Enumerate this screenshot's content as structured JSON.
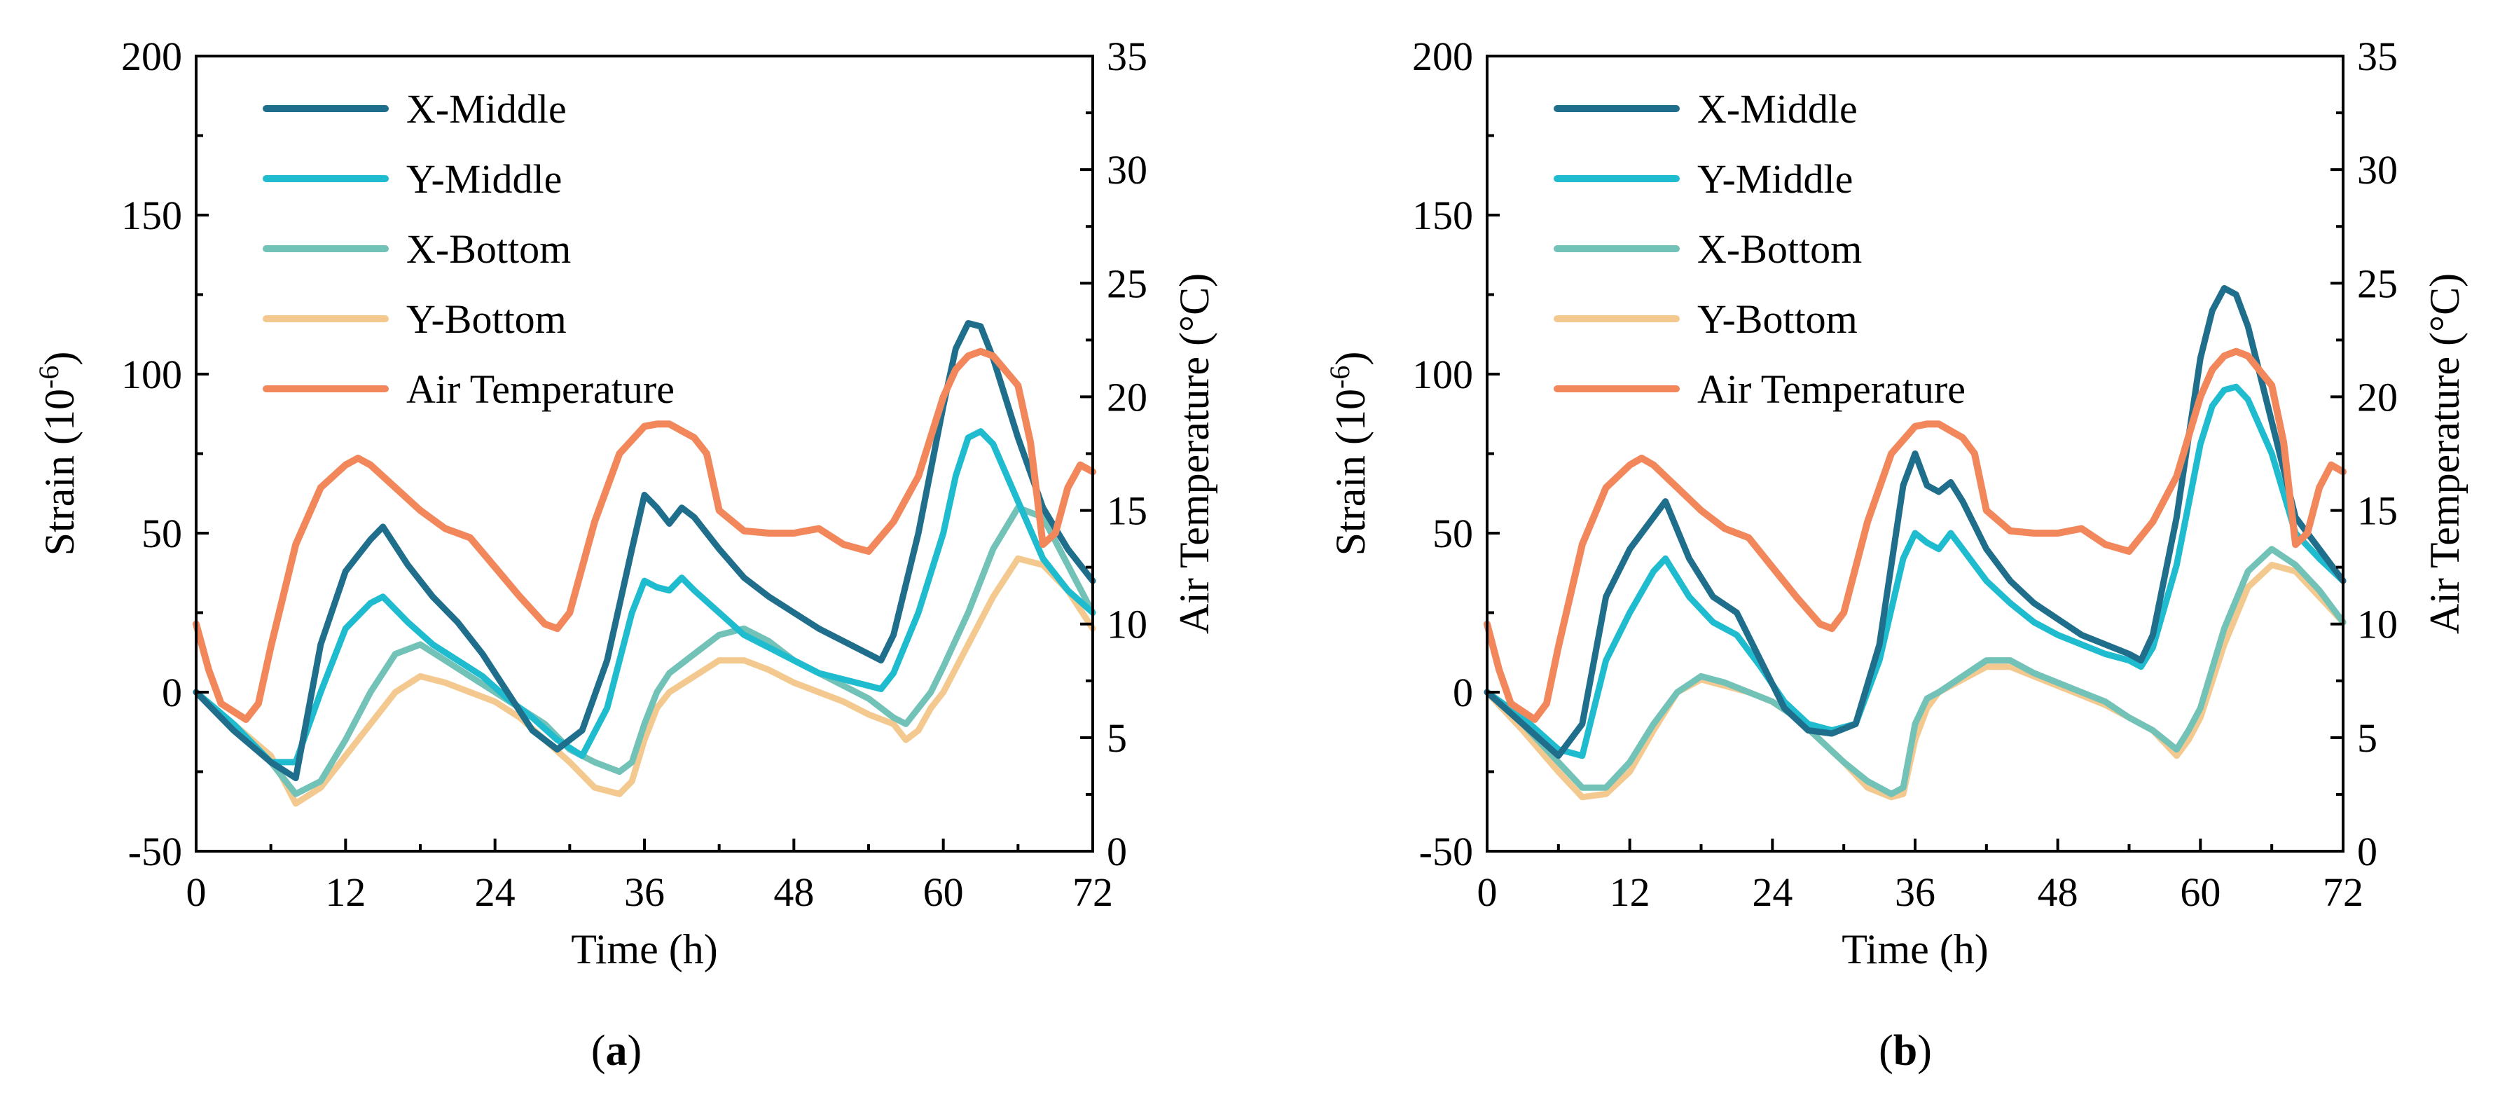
{
  "chart_data": [
    {
      "type": "line",
      "panel": "a",
      "caption_letter": "a",
      "caption_open": "(",
      "caption_close": ")",
      "xlabel": "Time (h)",
      "ylabel_left_main": "Strain (10",
      "ylabel_left_sup": "-6",
      "ylabel_left_close": ")",
      "ylabel_right": "Air Temperature (°C)",
      "xlim": [
        0,
        72
      ],
      "ylim_left": [
        -50,
        200
      ],
      "ylim_right": [
        0,
        35
      ],
      "xticks": [
        0,
        12,
        24,
        36,
        48,
        60,
        72
      ],
      "yticks_left": [
        -50,
        0,
        50,
        100,
        150,
        200
      ],
      "yticks_right": [
        0,
        5,
        10,
        15,
        20,
        25,
        30,
        35
      ],
      "legend_position": "top-left",
      "grid": false,
      "series": [
        {
          "name": "X-Middle",
          "axis": "left",
          "color": "#1F6E8C",
          "x": [
            0,
            3,
            6,
            8,
            10,
            12,
            14,
            15,
            17,
            19,
            21,
            23,
            25,
            27,
            29,
            31,
            33,
            35,
            36,
            37,
            38,
            39,
            40,
            42,
            44,
            46,
            48,
            50,
            52,
            54,
            55,
            56,
            58,
            60,
            61,
            62,
            63,
            64,
            66,
            68,
            70,
            72
          ],
          "values": [
            0,
            -12,
            -22,
            -27,
            15,
            38,
            48,
            52,
            40,
            30,
            22,
            12,
            0,
            -12,
            -18,
            -12,
            10,
            45,
            62,
            58,
            53,
            58,
            55,
            45,
            36,
            30,
            25,
            20,
            16,
            12,
            10,
            18,
            50,
            90,
            108,
            116,
            115,
            105,
            80,
            58,
            45,
            35
          ]
        },
        {
          "name": "Y-Middle",
          "axis": "left",
          "color": "#1FBCCF",
          "x": [
            0,
            3,
            6,
            8,
            10,
            12,
            14,
            15,
            17,
            19,
            21,
            23,
            25,
            27,
            29,
            31,
            33,
            35,
            36,
            37,
            38,
            39,
            40,
            42,
            44,
            46,
            48,
            50,
            52,
            54,
            55,
            56,
            58,
            60,
            61,
            62,
            63,
            64,
            66,
            68,
            70,
            72
          ],
          "values": [
            0,
            -10,
            -22,
            -22,
            0,
            20,
            28,
            30,
            22,
            15,
            10,
            5,
            -2,
            -8,
            -15,
            -20,
            -5,
            25,
            35,
            33,
            32,
            36,
            32,
            25,
            18,
            14,
            10,
            6,
            4,
            2,
            1,
            6,
            25,
            50,
            68,
            80,
            82,
            78,
            60,
            42,
            32,
            25
          ]
        },
        {
          "name": "X-Bottom",
          "axis": "left",
          "color": "#72C2B8",
          "x": [
            0,
            3,
            6,
            8,
            10,
            12,
            14,
            16,
            18,
            20,
            22,
            24,
            26,
            28,
            30,
            32,
            34,
            35,
            36,
            37,
            38,
            40,
            42,
            44,
            46,
            48,
            50,
            52,
            54,
            56,
            57,
            58,
            59,
            60,
            62,
            64,
            66,
            68,
            70,
            72
          ],
          "values": [
            0,
            -10,
            -22,
            -32,
            -28,
            -15,
            0,
            12,
            15,
            10,
            5,
            0,
            -5,
            -10,
            -18,
            -22,
            -25,
            -22,
            -10,
            0,
            6,
            12,
            18,
            20,
            16,
            10,
            6,
            2,
            -2,
            -8,
            -10,
            -5,
            0,
            8,
            25,
            45,
            58,
            55,
            40,
            25
          ]
        },
        {
          "name": "Y-Bottom",
          "axis": "left",
          "color": "#F4C98F",
          "x": [
            0,
            3,
            6,
            8,
            10,
            12,
            14,
            16,
            18,
            20,
            22,
            24,
            26,
            28,
            30,
            32,
            34,
            35,
            36,
            37,
            38,
            40,
            42,
            44,
            46,
            48,
            50,
            52,
            54,
            56,
            57,
            58,
            59,
            60,
            62,
            64,
            66,
            68,
            70,
            72
          ],
          "values": [
            0,
            -10,
            -20,
            -35,
            -30,
            -20,
            -10,
            0,
            5,
            3,
            0,
            -3,
            -8,
            -15,
            -22,
            -30,
            -32,
            -28,
            -15,
            -5,
            0,
            5,
            10,
            10,
            7,
            3,
            0,
            -3,
            -7,
            -10,
            -15,
            -12,
            -5,
            0,
            15,
            30,
            42,
            40,
            32,
            20
          ]
        },
        {
          "name": "Air Temperature",
          "axis": "right",
          "color": "#F2875C",
          "x": [
            0,
            1,
            2,
            4,
            5,
            6,
            8,
            10,
            12,
            13,
            14,
            16,
            18,
            20,
            22,
            24,
            26,
            28,
            29,
            30,
            32,
            34,
            36,
            37,
            38,
            40,
            41,
            42,
            44,
            46,
            48,
            50,
            52,
            54,
            56,
            58,
            60,
            61,
            62,
            63,
            64,
            66,
            67,
            68,
            69,
            70,
            71,
            72
          ],
          "values": [
            10,
            8,
            6.5,
            5.8,
            6.5,
            9,
            13.5,
            16,
            17,
            17.3,
            17,
            16,
            15,
            14.2,
            13.8,
            12.5,
            11.2,
            10,
            9.8,
            10.5,
            14.5,
            17.5,
            18.7,
            18.8,
            18.8,
            18.2,
            17.5,
            15,
            14.1,
            14,
            14,
            14.2,
            13.5,
            13.2,
            14.5,
            16.5,
            20,
            21.2,
            21.8,
            22,
            21.8,
            20.5,
            18,
            13.5,
            14,
            16,
            17,
            16.7
          ]
        }
      ]
    },
    {
      "type": "line",
      "panel": "b",
      "caption_letter": "b",
      "caption_open": "(",
      "caption_close": ")",
      "xlabel": "Time (h)",
      "ylabel_left_main": "Strain (10",
      "ylabel_left_sup": "-6",
      "ylabel_left_close": ")",
      "ylabel_right": "Air Temperature (°C)",
      "xlim": [
        0,
        72
      ],
      "ylim_left": [
        -50,
        200
      ],
      "ylim_right": [
        0,
        35
      ],
      "xticks": [
        0,
        12,
        24,
        36,
        48,
        60,
        72
      ],
      "yticks_left": [
        -50,
        0,
        50,
        100,
        150,
        200
      ],
      "yticks_right": [
        0,
        5,
        10,
        15,
        20,
        25,
        30,
        35
      ],
      "legend_position": "top-left",
      "grid": false,
      "series": [
        {
          "name": "X-Middle",
          "axis": "left",
          "color": "#1F6E8C",
          "x": [
            0,
            3,
            6,
            8,
            10,
            12,
            14,
            15,
            17,
            19,
            21,
            23,
            25,
            27,
            29,
            31,
            33,
            35,
            36,
            37,
            38,
            39,
            40,
            42,
            44,
            46,
            48,
            50,
            52,
            54,
            55,
            56,
            58,
            60,
            61,
            62,
            63,
            64,
            66,
            68,
            70,
            72
          ],
          "values": [
            0,
            -10,
            -20,
            -10,
            30,
            45,
            55,
            60,
            42,
            30,
            25,
            10,
            -5,
            -12,
            -13,
            -10,
            15,
            65,
            75,
            65,
            63,
            66,
            60,
            45,
            35,
            28,
            23,
            18,
            15,
            12,
            10,
            18,
            55,
            105,
            120,
            127,
            125,
            115,
            85,
            55,
            45,
            35
          ]
        },
        {
          "name": "Y-Middle",
          "axis": "left",
          "color": "#1FBCCF",
          "x": [
            0,
            3,
            6,
            8,
            10,
            12,
            14,
            15,
            17,
            19,
            21,
            23,
            25,
            27,
            29,
            31,
            33,
            35,
            36,
            37,
            38,
            39,
            40,
            42,
            44,
            46,
            48,
            50,
            52,
            54,
            55,
            56,
            58,
            60,
            61,
            62,
            63,
            64,
            66,
            68,
            70,
            72
          ],
          "values": [
            0,
            -8,
            -18,
            -20,
            10,
            25,
            38,
            42,
            30,
            22,
            18,
            8,
            -3,
            -10,
            -12,
            -10,
            10,
            42,
            50,
            47,
            45,
            50,
            45,
            35,
            28,
            22,
            18,
            15,
            12,
            10,
            8,
            14,
            40,
            78,
            90,
            95,
            96,
            92,
            75,
            50,
            42,
            35
          ]
        },
        {
          "name": "X-Bottom",
          "axis": "left",
          "color": "#72C2B8",
          "x": [
            0,
            3,
            6,
            8,
            10,
            12,
            14,
            16,
            18,
            20,
            22,
            24,
            26,
            28,
            30,
            32,
            34,
            35,
            36,
            37,
            38,
            40,
            42,
            44,
            46,
            48,
            50,
            52,
            54,
            56,
            57,
            58,
            59,
            60,
            62,
            64,
            66,
            68,
            70,
            72
          ],
          "values": [
            0,
            -10,
            -22,
            -30,
            -30,
            -22,
            -10,
            0,
            5,
            3,
            0,
            -3,
            -8,
            -15,
            -22,
            -28,
            -32,
            -30,
            -10,
            -2,
            0,
            5,
            10,
            10,
            6,
            3,
            0,
            -3,
            -8,
            -12,
            -15,
            -18,
            -12,
            -5,
            20,
            38,
            45,
            40,
            32,
            22
          ]
        },
        {
          "name": "Y-Bottom",
          "axis": "left",
          "color": "#F4C98F",
          "x": [
            0,
            3,
            6,
            8,
            10,
            12,
            14,
            16,
            18,
            20,
            22,
            24,
            26,
            28,
            30,
            32,
            34,
            35,
            36,
            37,
            38,
            40,
            42,
            44,
            46,
            48,
            50,
            52,
            54,
            56,
            57,
            58,
            59,
            60,
            62,
            64,
            66,
            68,
            70,
            72
          ],
          "values": [
            0,
            -12,
            -25,
            -33,
            -32,
            -25,
            -12,
            0,
            4,
            2,
            0,
            -3,
            -8,
            -15,
            -22,
            -30,
            -33,
            -32,
            -15,
            -5,
            0,
            4,
            8,
            8,
            5,
            2,
            -1,
            -4,
            -8,
            -12,
            -16,
            -20,
            -15,
            -8,
            15,
            33,
            40,
            38,
            30,
            22
          ]
        },
        {
          "name": "Air Temperature",
          "axis": "right",
          "color": "#F2875C",
          "x": [
            0,
            1,
            2,
            4,
            5,
            6,
            8,
            10,
            12,
            13,
            14,
            16,
            18,
            20,
            22,
            24,
            26,
            28,
            29,
            30,
            32,
            34,
            36,
            37,
            38,
            40,
            41,
            42,
            44,
            46,
            48,
            50,
            52,
            54,
            56,
            58,
            60,
            61,
            62,
            63,
            64,
            66,
            67,
            68,
            69,
            70,
            71,
            72
          ],
          "values": [
            10,
            8,
            6.5,
            5.8,
            6.5,
            9,
            13.5,
            16,
            17,
            17.3,
            17,
            16,
            15,
            14.2,
            13.8,
            12.5,
            11.2,
            10,
            9.8,
            10.5,
            14.5,
            17.5,
            18.7,
            18.8,
            18.8,
            18.2,
            17.5,
            15,
            14.1,
            14,
            14,
            14.2,
            13.5,
            13.2,
            14.5,
            16.5,
            20,
            21.2,
            21.8,
            22,
            21.8,
            20.5,
            18,
            13.5,
            14,
            16,
            17,
            16.7
          ]
        }
      ]
    }
  ]
}
